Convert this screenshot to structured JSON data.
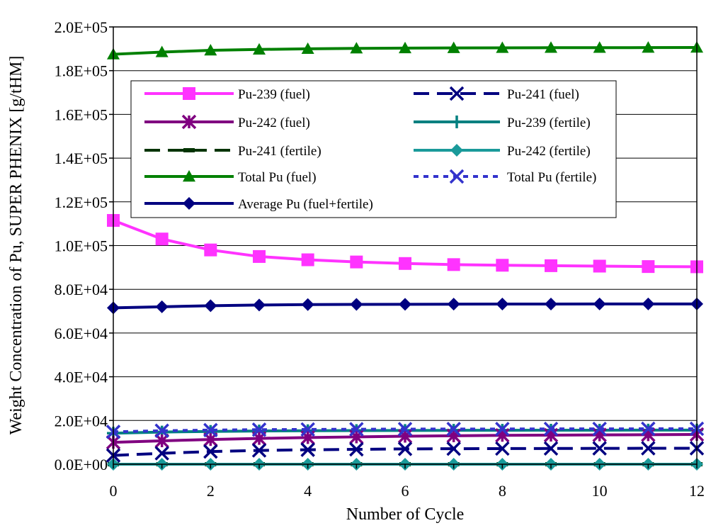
{
  "chart_data": {
    "type": "line",
    "xlabel": "Number of Cycle",
    "ylabel": "Weight Concentration of Pu, SUPER PHENIX  [g/tHM]",
    "xlim": [
      0,
      12
    ],
    "ylim": [
      0,
      200000
    ],
    "x_ticks": [
      "0",
      "2",
      "4",
      "6",
      "8",
      "10",
      "12"
    ],
    "y_ticks": [
      "0.0E+00",
      "2.0E+04",
      "4.0E+04",
      "6.0E+04",
      "8.0E+04",
      "1.0E+05",
      "1.2E+05",
      "1.4E+05",
      "1.6E+05",
      "1.8E+05",
      "2.0E+05"
    ],
    "grid": "horizontal",
    "legend_position": "upper-middle",
    "x": [
      0,
      1,
      2,
      3,
      4,
      5,
      6,
      7,
      8,
      9,
      10,
      11,
      12
    ],
    "series": [
      {
        "name": "Pu-239 (fuel)",
        "color": "#ff33ff",
        "dash": "solid",
        "marker": "square",
        "values": [
          111500,
          103000,
          98000,
          95000,
          93500,
          92500,
          91800,
          91300,
          91000,
          90800,
          90600,
          90400,
          90300
        ]
      },
      {
        "name": "Pu-241 (fuel)",
        "color": "#000080",
        "dash": "longdash",
        "marker": "x",
        "values": [
          4000,
          5000,
          5800,
          6300,
          6600,
          6800,
          7000,
          7100,
          7150,
          7200,
          7250,
          7280,
          7300
        ]
      },
      {
        "name": "Pu-242 (fuel)",
        "color": "#800080",
        "dash": "solid",
        "marker": "star",
        "values": [
          10000,
          10700,
          11300,
          11800,
          12200,
          12500,
          12800,
          13000,
          13200,
          13300,
          13400,
          13500,
          13600
        ]
      },
      {
        "name": "Pu-239 (fertile)",
        "color": "#008080",
        "dash": "solid",
        "marker": "plus",
        "values": [
          14200,
          14700,
          15000,
          15200,
          15300,
          15400,
          15450,
          15500,
          15500,
          15550,
          15550,
          15600,
          15600
        ]
      },
      {
        "name": "Pu-241 (fertile)",
        "color": "#003300",
        "dash": "longdash",
        "marker": "dash",
        "values": [
          0,
          0,
          0,
          0,
          0,
          0,
          0,
          0,
          0,
          0,
          0,
          0,
          0
        ]
      },
      {
        "name": "Pu-242 (fertile)",
        "color": "#1a9a9a",
        "dash": "solid",
        "marker": "diamond",
        "values": [
          0,
          0,
          0,
          0,
          0,
          0,
          0,
          0,
          0,
          0,
          0,
          0,
          0
        ]
      },
      {
        "name": "Total Pu (fuel)",
        "color": "#008000",
        "dash": "solid",
        "marker": "triangle",
        "values": [
          187500,
          188500,
          189300,
          189700,
          190000,
          190200,
          190300,
          190400,
          190450,
          190500,
          190500,
          190550,
          190600
        ]
      },
      {
        "name": "Total Pu (fertile)",
        "color": "#3333cc",
        "dash": "dotted",
        "marker": "x",
        "values": [
          14800,
          15300,
          15600,
          15800,
          15900,
          16000,
          16050,
          16100,
          16100,
          16150,
          16150,
          16200,
          16200
        ]
      },
      {
        "name": "Average Pu (fuel+fertile)",
        "color": "#000080",
        "dash": "solid",
        "marker": "diamond",
        "values": [
          71500,
          72000,
          72500,
          72800,
          73000,
          73100,
          73150,
          73200,
          73250,
          73250,
          73300,
          73300,
          73300
        ]
      }
    ]
  }
}
